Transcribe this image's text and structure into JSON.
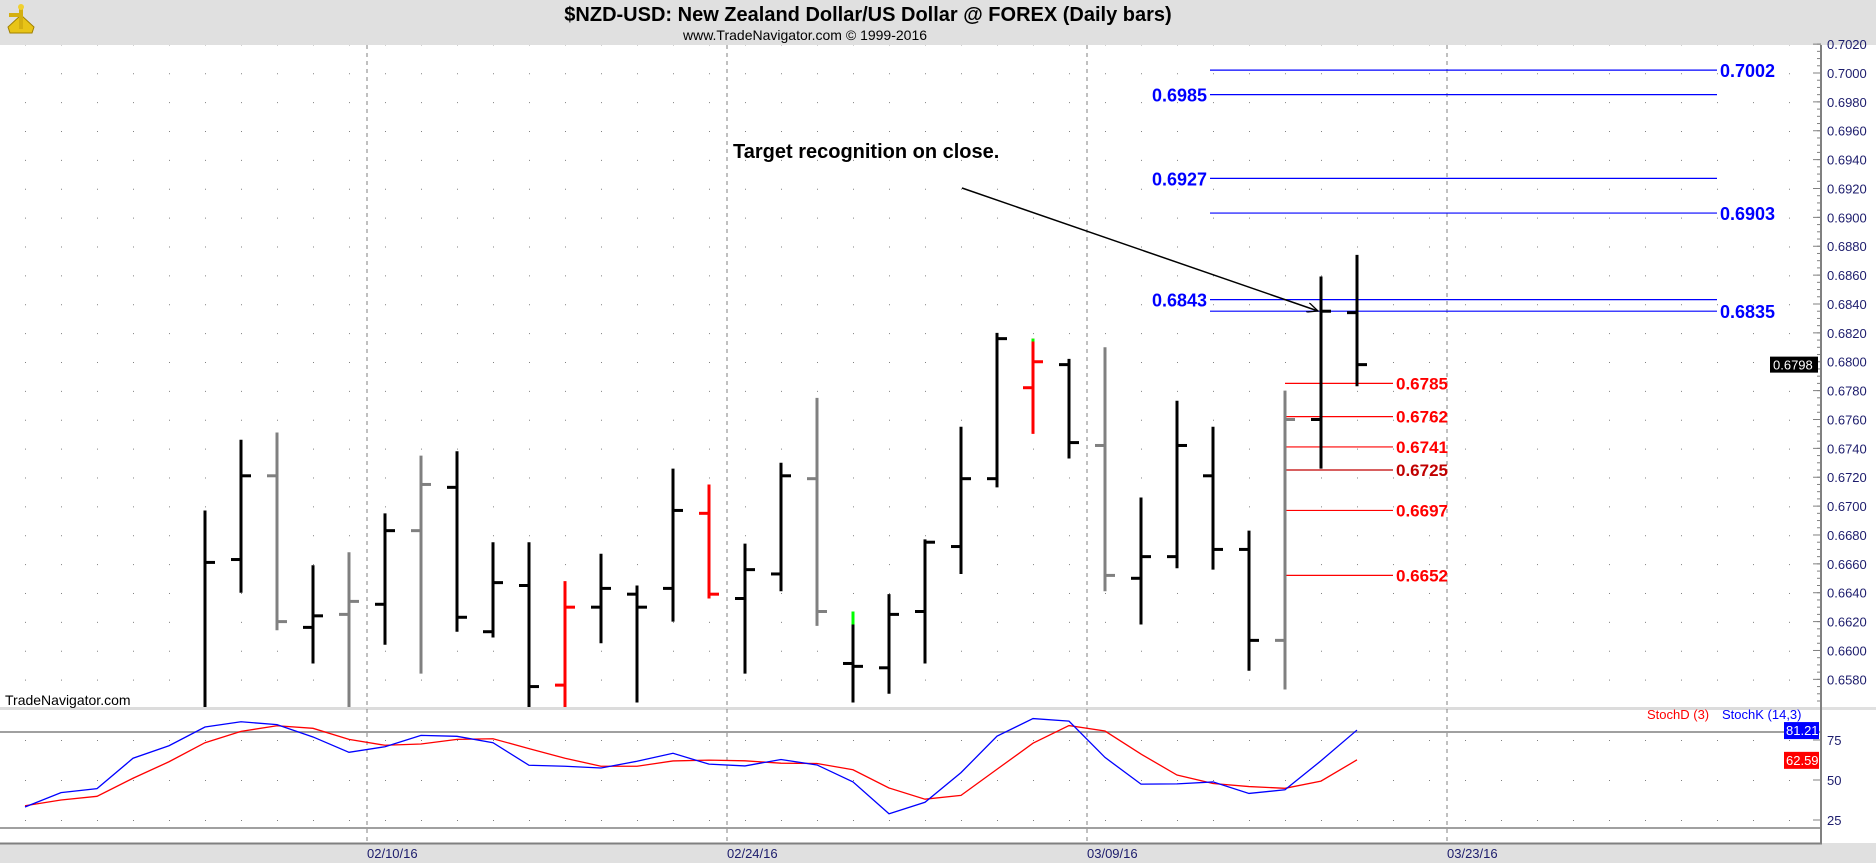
{
  "header": {
    "title": "$NZD-USD:  New Zealand Dollar/US Dollar @ FOREX  (Daily bars)",
    "subtitle": "www.TradeNavigator.com © 1999-2016",
    "logo_icon": "sextant-icon"
  },
  "watermark": "TradeNavigator.com",
  "annotation": "Target recognition on close.",
  "colors": {
    "up": "#000000",
    "down": "#808080",
    "red": "#ff0000",
    "green": "#00ff00",
    "blue": "#0000ff",
    "darkred": "#c00000"
  },
  "chart_data": [
    {
      "type": "ohlc",
      "title": "$NZD-USD Daily bars",
      "ylim": [
        0.6565,
        0.7025
      ],
      "y_ticks": [
        "0.7020",
        "0.7000",
        "0.6980",
        "0.6960",
        "0.6940",
        "0.6920",
        "0.6900",
        "0.6880",
        "0.6860",
        "0.6840",
        "0.6820",
        "0.6800",
        "0.6780",
        "0.6760",
        "0.6740",
        "0.6720",
        "0.6700",
        "0.6680",
        "0.6660",
        "0.6640",
        "0.6620",
        "0.6600",
        "0.6580"
      ],
      "x_ticks": [
        {
          "label": "02/10/16",
          "bar": 4.5
        },
        {
          "label": "02/24/16",
          "bar": 14.5
        },
        {
          "label": "03/09/16",
          "bar": 24.5
        },
        {
          "label": "03/23/16",
          "bar": 34.5
        }
      ],
      "last_price": "0.6798",
      "bars": [
        {
          "o": null,
          "h": 0.6697,
          "l": 0.655,
          "c": 0.6661,
          "color": "black"
        },
        {
          "o": 0.6663,
          "h": 0.6746,
          "l": 0.664,
          "c": 0.6721,
          "color": "black"
        },
        {
          "o": 0.6721,
          "h": 0.6751,
          "l": 0.6614,
          "c": 0.662,
          "color": "gray"
        },
        {
          "o": 0.6616,
          "h": 0.6659,
          "l": 0.6591,
          "c": 0.6624,
          "color": "black"
        },
        {
          "o": 0.6625,
          "h": 0.6668,
          "l": 0.655,
          "c": 0.6634,
          "color": "gray"
        },
        {
          "o": 0.6632,
          "h": 0.6695,
          "l": 0.6604,
          "c": 0.6683,
          "color": "black"
        },
        {
          "o": 0.6683,
          "h": 0.6735,
          "l": 0.6584,
          "c": 0.6715,
          "color": "gray"
        },
        {
          "o": 0.6713,
          "h": 0.6738,
          "l": 0.6613,
          "c": 0.6623,
          "color": "black"
        },
        {
          "o": 0.6613,
          "h": 0.6675,
          "l": 0.6609,
          "c": 0.6647,
          "color": "black"
        },
        {
          "o": 0.6645,
          "h": 0.6675,
          "l": 0.655,
          "c": 0.6575,
          "color": "black"
        },
        {
          "o": 0.6576,
          "h": 0.6648,
          "l": 0.655,
          "c": 0.663,
          "color": "red"
        },
        {
          "o": 0.663,
          "h": 0.6667,
          "l": 0.6605,
          "c": 0.6643,
          "color": "black"
        },
        {
          "o": 0.6639,
          "h": 0.6645,
          "l": 0.6564,
          "c": 0.663,
          "color": "black"
        },
        {
          "o": 0.6643,
          "h": 0.6726,
          "l": 0.662,
          "c": 0.6697,
          "color": "black"
        },
        {
          "o": 0.6695,
          "h": 0.6715,
          "l": 0.6636,
          "c": 0.6639,
          "color": "red"
        },
        {
          "o": 0.6636,
          "h": 0.6674,
          "l": 0.6584,
          "c": 0.6656,
          "color": "black"
        },
        {
          "o": 0.6653,
          "h": 0.673,
          "l": 0.6641,
          "c": 0.6721,
          "color": "black"
        },
        {
          "o": 0.6719,
          "h": 0.6775,
          "l": 0.6617,
          "c": 0.6627,
          "color": "gray"
        },
        {
          "o": 0.6591,
          "h": 0.6627,
          "l": 0.6564,
          "c": 0.6589,
          "color": "black",
          "tip": 0.6618
        },
        {
          "o": 0.6588,
          "h": 0.6639,
          "l": 0.657,
          "c": 0.6625,
          "color": "black"
        },
        {
          "o": 0.6627,
          "h": 0.6677,
          "l": 0.6591,
          "c": 0.6675,
          "color": "black"
        },
        {
          "o": 0.6672,
          "h": 0.6755,
          "l": 0.6653,
          "c": 0.6719,
          "color": "black"
        },
        {
          "o": 0.6719,
          "h": 0.682,
          "l": 0.6713,
          "c": 0.6816,
          "color": "black"
        },
        {
          "o": 0.6782,
          "h": 0.6816,
          "l": 0.675,
          "c": 0.68,
          "color": "red",
          "tip": 0.6814
        },
        {
          "o": 0.6798,
          "h": 0.6802,
          "l": 0.6733,
          "c": 0.6744,
          "color": "black"
        },
        {
          "o": 0.6742,
          "h": 0.681,
          "l": 0.6641,
          "c": 0.6652,
          "color": "gray"
        },
        {
          "o": 0.665,
          "h": 0.6706,
          "l": 0.6618,
          "c": 0.6665,
          "color": "black"
        },
        {
          "o": 0.6665,
          "h": 0.6773,
          "l": 0.6657,
          "c": 0.6742,
          "color": "black"
        },
        {
          "o": 0.6721,
          "h": 0.6755,
          "l": 0.6656,
          "c": 0.667,
          "color": "black"
        },
        {
          "o": 0.667,
          "h": 0.6683,
          "l": 0.6586,
          "c": 0.6607,
          "color": "black"
        },
        {
          "o": 0.6607,
          "h": 0.678,
          "l": 0.6573,
          "c": 0.676,
          "color": "gray"
        },
        {
          "o": 0.676,
          "h": 0.6859,
          "l": 0.6726,
          "c": 0.6835,
          "color": "black"
        },
        {
          "o": 0.6834,
          "h": 0.6874,
          "l": 0.6783,
          "c": 0.6798,
          "color": "black"
        }
      ],
      "target_levels": [
        {
          "label": "0.7002",
          "value": 0.7002,
          "side": "right"
        },
        {
          "label": "0.6985",
          "value": 0.6985,
          "side": "left"
        },
        {
          "label": "0.6927",
          "value": 0.6927,
          "side": "left"
        },
        {
          "label": "0.6903",
          "value": 0.6903,
          "side": "right"
        },
        {
          "label": "0.6843",
          "value": 0.6843,
          "side": "left"
        },
        {
          "label": "0.6835",
          "value": 0.6835,
          "side": "right"
        }
      ],
      "support_levels": [
        {
          "label": "0.6785",
          "value": 0.6785,
          "color": "red"
        },
        {
          "label": "0.6762",
          "value": 0.6762,
          "color": "red"
        },
        {
          "label": "0.6741",
          "value": 0.6741,
          "color": "red"
        },
        {
          "label": "0.6725",
          "value": 0.6725,
          "color": "darkred"
        },
        {
          "label": "0.6697",
          "value": 0.6697,
          "color": "red"
        },
        {
          "label": "0.6652",
          "value": 0.6652,
          "color": "red"
        }
      ]
    },
    {
      "type": "line",
      "title": "Stochastic",
      "ylim": [
        15,
        95
      ],
      "y_ticks": [
        "75",
        "50",
        "25"
      ],
      "ref_lines": [
        80,
        20
      ],
      "x_start_bar": -5,
      "series": [
        {
          "name": "StochD (3)",
          "color": "red",
          "last": "62.59",
          "values": [
            33.9,
            37.5,
            39.8,
            51.1,
            61.4,
            73.3,
            80.4,
            83.9,
            82.3,
            75.4,
            71.7,
            72.5,
            75.4,
            75.8,
            69.6,
            63.6,
            58.6,
            58.6,
            61.9,
            62.4,
            62.0,
            60.5,
            60.3,
            56.4,
            45.0,
            38.0,
            40.4,
            56.7,
            73.0,
            84.0,
            80.6,
            66.2,
            53.1,
            47.8,
            45.9,
            44.8,
            49.3,
            62.59
          ]
        },
        {
          "name": "StochK (14,3)",
          "color": "blue",
          "last": "81.21",
          "values": [
            33.1,
            42.1,
            44.6,
            63.6,
            71.4,
            83.1,
            86.4,
            84.6,
            76.9,
            67.3,
            70.8,
            77.9,
            77.3,
            73.3,
            59.2,
            58.6,
            57.5,
            61.7,
            66.7,
            59.9,
            58.8,
            62.8,
            59.4,
            48.8,
            28.9,
            36.1,
            54.6,
            77.4,
            88.4,
            86.8,
            64.1,
            47.4,
            47.6,
            48.8,
            41.6,
            43.9,
            62.0,
            81.21
          ]
        }
      ]
    }
  ]
}
